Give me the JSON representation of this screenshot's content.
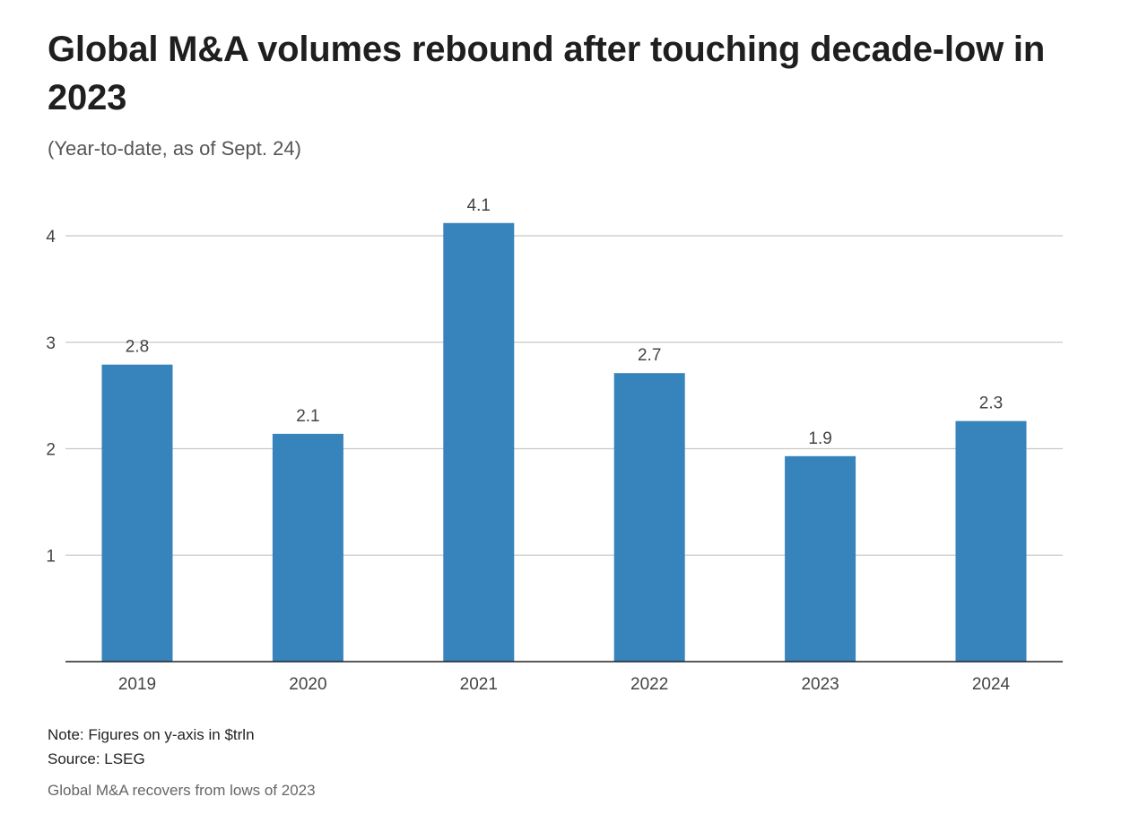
{
  "header": {
    "title": "Global M&A volumes rebound after touching decade-low in 2023",
    "subtitle": "(Year-to-date, as of Sept. 24)"
  },
  "footer": {
    "note": "Note: Figures on y-axis in $trln",
    "source": "Source: LSEG",
    "caption": "Global M&A recovers from lows of 2023"
  },
  "colors": {
    "bar": "#3783bb",
    "grid": "#c8c8c8",
    "axis": "#222222"
  },
  "chart_data": {
    "type": "bar",
    "title": "Global M&A volumes rebound after touching decade-low in 2023",
    "subtitle": "(Year-to-date, as of Sept. 24)",
    "categories": [
      "2019",
      "2020",
      "2021",
      "2022",
      "2023",
      "2024"
    ],
    "values": [
      2.79,
      2.14,
      4.12,
      2.71,
      1.93,
      2.26
    ],
    "data_labels": [
      "2.8",
      "2.1",
      "4.1",
      "2.7",
      "1.9",
      "2.3"
    ],
    "xlabel": "",
    "ylabel": "",
    "y_units": "$trln",
    "ylim": [
      0,
      4
    ],
    "yticks": [
      1,
      2,
      3,
      4
    ],
    "ytick_labels": [
      "1",
      "2",
      "3",
      "4"
    ],
    "grid": true,
    "legend": "none"
  }
}
